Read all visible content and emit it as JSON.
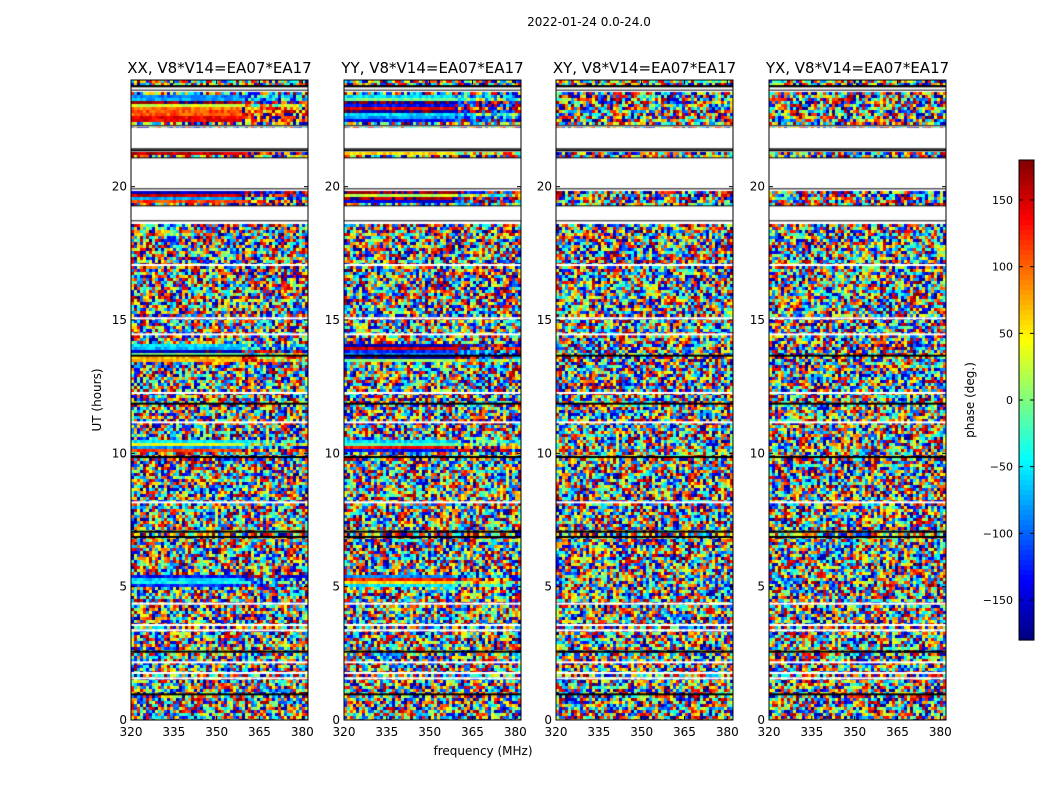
{
  "figure": {
    "suptitle": "2022-01-24 0.0-24.0",
    "shared_xlabel": "frequency (MHz)",
    "shared_ylabel": "UT (hours)"
  },
  "chart_data": [
    {
      "type": "heatmap",
      "title": "XX, V8*V14=EA07*EA17",
      "xlabel": "frequency (MHz)",
      "ylabel": "UT (hours)",
      "xlim": [
        320,
        382
      ],
      "ylim": [
        0,
        24
      ],
      "xticks": [
        320,
        335,
        350,
        365,
        380
      ],
      "yticks": [
        0,
        5,
        10,
        15,
        20
      ],
      "value": "phase (deg.)",
      "coherent_bands_hours": [
        [
          22.5,
          23.5
        ],
        [
          19.4,
          19.9
        ],
        [
          21.2,
          21.4
        ],
        [
          13.5,
          14.2
        ],
        [
          10.1,
          10.6
        ],
        [
          5.1,
          5.5
        ]
      ]
    },
    {
      "type": "heatmap",
      "title": "YY, V8*V14=EA07*EA17",
      "xlabel": "frequency (MHz)",
      "ylabel": "UT (hours)",
      "xlim": [
        320,
        382
      ],
      "ylim": [
        0,
        24
      ],
      "xticks": [
        320,
        335,
        350,
        365,
        380
      ],
      "yticks": [
        0,
        5,
        10,
        15,
        20
      ],
      "value": "phase (deg.)",
      "coherent_bands_hours": [
        [
          22.5,
          23.5
        ],
        [
          19.4,
          19.9
        ],
        [
          21.2,
          21.4
        ],
        [
          13.5,
          14.2
        ],
        [
          10.1,
          10.6
        ],
        [
          5.1,
          5.5
        ]
      ]
    },
    {
      "type": "heatmap",
      "title": "XY, V8*V14=EA07*EA17",
      "xlabel": "frequency (MHz)",
      "ylabel": "UT (hours)",
      "xlim": [
        320,
        382
      ],
      "ylim": [
        0,
        24
      ],
      "xticks": [
        320,
        335,
        350,
        365,
        380
      ],
      "yticks": [
        0,
        5,
        10,
        15,
        20
      ],
      "value": "phase (deg.)",
      "coherent_bands_hours": []
    },
    {
      "type": "heatmap",
      "title": "YX, V8*V14=EA07*EA17",
      "xlabel": "frequency (MHz)",
      "ylabel": "UT (hours)",
      "xlim": [
        320,
        382
      ],
      "ylim": [
        0,
        24
      ],
      "xticks": [
        320,
        335,
        350,
        365,
        380
      ],
      "yticks": [
        0,
        5,
        10,
        15,
        20
      ],
      "value": "phase (deg.)",
      "coherent_bands_hours": []
    }
  ],
  "colorbar": {
    "label": "phase (deg.)",
    "range": [
      -180,
      180
    ],
    "ticks": [
      -150,
      -100,
      -50,
      0,
      50,
      100,
      150
    ],
    "tick_labels": [
      "−150",
      "−100",
      "−50",
      "0",
      "50",
      "100",
      "150"
    ],
    "colormap": "jet"
  },
  "flagged_gaps_hours": [
    [
      21.4,
      22.3
    ],
    [
      18.7,
      19.3
    ],
    [
      19.9,
      21.1
    ],
    [
      23.6,
      23.8
    ]
  ],
  "black_rows_hours": [
    23.8,
    21.4,
    13.7,
    11.9,
    9.9,
    7.1,
    6.9,
    2.6,
    1.0
  ],
  "white_rows_hours": [
    22.0,
    22.3,
    17.1,
    15.1,
    14.5,
    12.3,
    11.2,
    8.2,
    4.4,
    3.6,
    3.4,
    2.2,
    1.8,
    1.6
  ]
}
